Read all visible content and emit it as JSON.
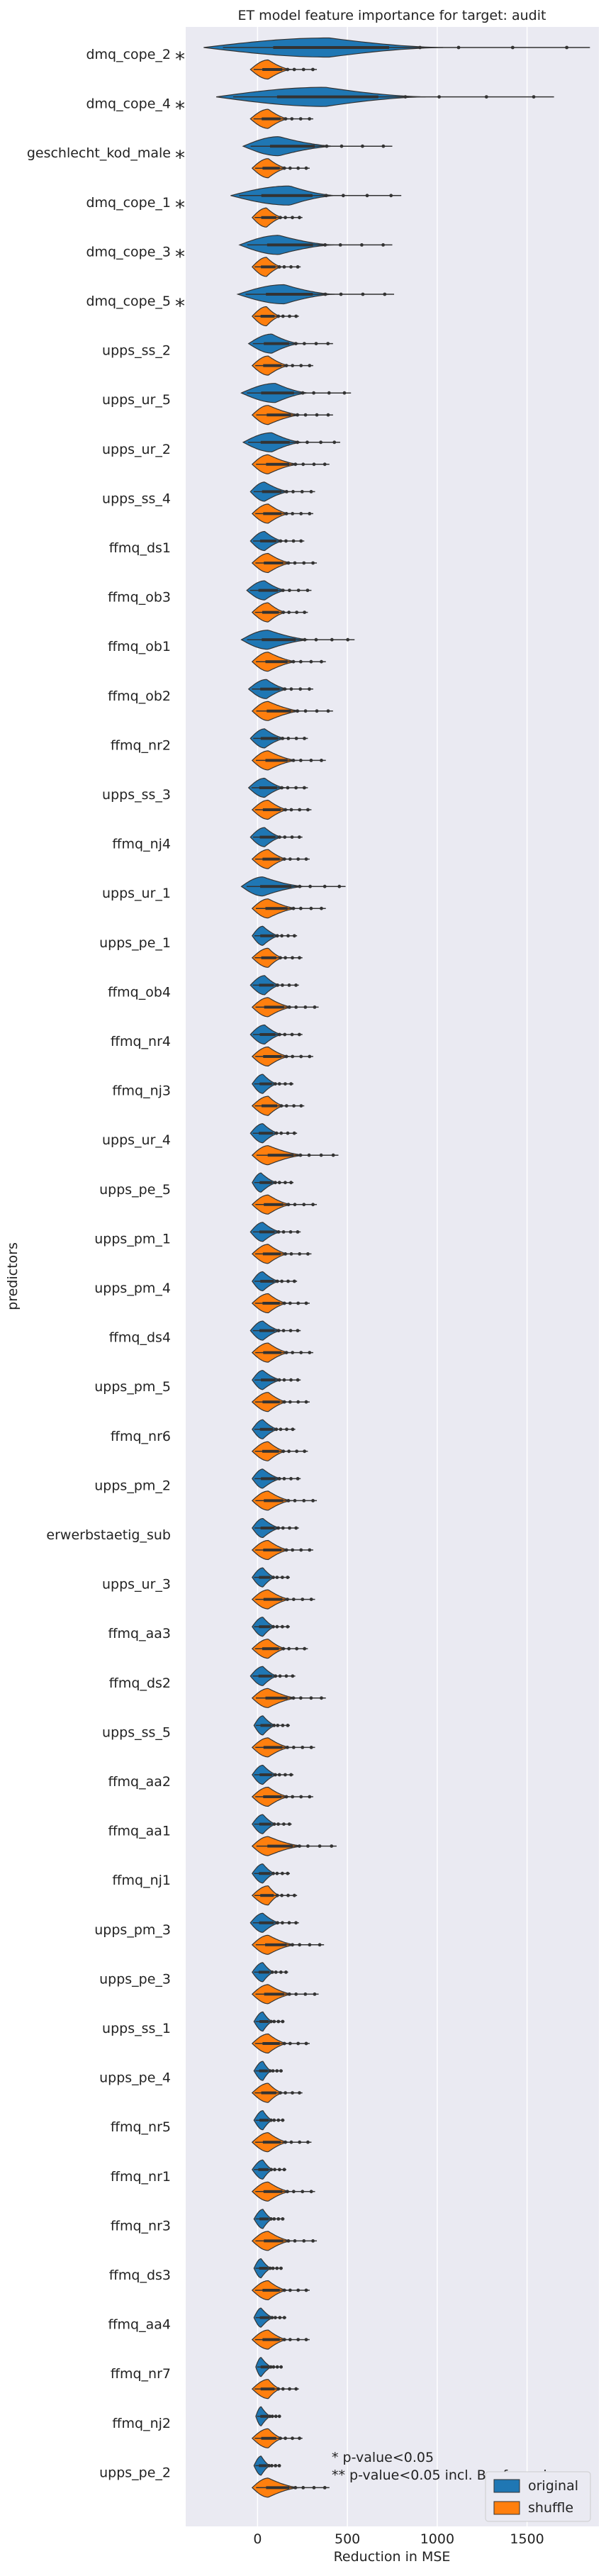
{
  "chart_data": {
    "type": "violin",
    "title": "ET model feature importance for target: audit",
    "xlabel": "Reduction in MSE",
    "ylabel": "predictors",
    "xlim": [
      -400,
      1900
    ],
    "xticks": [
      0,
      500,
      1000,
      1500
    ],
    "xtick_labels": [
      "0",
      "500",
      "1000",
      "1500"
    ],
    "grid": true,
    "legend": {
      "position": "lower-right",
      "entries": [
        "original",
        "shuffle"
      ]
    },
    "colors": {
      "original": "#1f77b4",
      "shuffle": "#ff7f0e",
      "background": "#eaeaf2",
      "grid": "#ffffff"
    },
    "note_lines": [
      "*  p-value<0.05",
      "** p-value<0.05 incl. Bonferroni"
    ],
    "categories": [
      "dmq_cope_2",
      "dmq_cope_4",
      "geschlecht_kod_male",
      "dmq_cope_1",
      "dmq_cope_3",
      "dmq_cope_5",
      "upps_ss_2",
      "upps_ur_5",
      "upps_ur_2",
      "upps_ss_4",
      "ffmq_ds1",
      "ffmq_ob3",
      "ffmq_ob1",
      "ffmq_ob2",
      "ffmq_nr2",
      "upps_ss_3",
      "ffmq_nj4",
      "upps_ur_1",
      "upps_pe_1",
      "ffmq_ob4",
      "ffmq_nr4",
      "ffmq_nj3",
      "upps_ur_4",
      "upps_pe_5",
      "upps_pm_1",
      "upps_pm_4",
      "ffmq_ds4",
      "upps_pm_5",
      "ffmq_nr6",
      "upps_pm_2",
      "erwerbstaetig_sub",
      "upps_ur_3",
      "ffmq_aa3",
      "ffmq_ds2",
      "upps_ss_5",
      "ffmq_aa2",
      "ffmq_aa1",
      "ffmq_nj1",
      "upps_pm_3",
      "upps_pe_3",
      "upps_ss_1",
      "upps_pe_4",
      "ffmq_nr5",
      "ffmq_nr1",
      "ffmq_nr3",
      "ffmq_ds3",
      "ffmq_aa4",
      "ffmq_nr7",
      "ffmq_nj2",
      "upps_pe_2"
    ],
    "significance": [
      "*",
      "*",
      "*",
      "*",
      "*",
      "*",
      "",
      "",
      "",
      "",
      "",
      "",
      "",
      "",
      "",
      "",
      "",
      "",
      "",
      "",
      "",
      "",
      "",
      "",
      "",
      "",
      "",
      "",
      "",
      "",
      "",
      "",
      "",
      "",
      "",
      "",
      "",
      "",
      "",
      "",
      "",
      "",
      "",
      "",
      "",
      "",
      "",
      "",
      "",
      ""
    ],
    "series": [
      {
        "name": "original",
        "ranges": [
          [
            -300,
            1850
          ],
          [
            -230,
            1650
          ],
          [
            -80,
            750
          ],
          [
            -150,
            800
          ],
          [
            -100,
            750
          ],
          [
            -110,
            760
          ],
          [
            -50,
            420
          ],
          [
            -90,
            520
          ],
          [
            -80,
            460
          ],
          [
            -40,
            320
          ],
          [
            -40,
            260
          ],
          [
            -60,
            300
          ],
          [
            -90,
            540
          ],
          [
            -50,
            310
          ],
          [
            -40,
            280
          ],
          [
            -50,
            280
          ],
          [
            -40,
            250
          ],
          [
            -90,
            490
          ],
          [
            -30,
            220
          ],
          [
            -40,
            230
          ],
          [
            -40,
            250
          ],
          [
            -30,
            200
          ],
          [
            -40,
            220
          ],
          [
            -30,
            200
          ],
          [
            -40,
            240
          ],
          [
            -30,
            220
          ],
          [
            -40,
            240
          ],
          [
            -30,
            240
          ],
          [
            -30,
            210
          ],
          [
            -30,
            240
          ],
          [
            -30,
            230
          ],
          [
            -30,
            180
          ],
          [
            -30,
            180
          ],
          [
            -40,
            210
          ],
          [
            -20,
            180
          ],
          [
            -30,
            200
          ],
          [
            -30,
            190
          ],
          [
            -30,
            180
          ],
          [
            -40,
            230
          ],
          [
            -30,
            170
          ],
          [
            -20,
            150
          ],
          [
            -20,
            140
          ],
          [
            -20,
            150
          ],
          [
            -30,
            160
          ],
          [
            -20,
            150
          ],
          [
            -20,
            140
          ],
          [
            -20,
            160
          ],
          [
            -10,
            140
          ],
          [
            -10,
            130
          ],
          [
            -20,
            130
          ]
        ],
        "peaks": [
          400,
          380,
          120,
          180,
          120,
          150,
          80,
          100,
          80,
          40,
          40,
          40,
          60,
          50,
          40,
          40,
          40,
          30,
          30,
          40,
          40,
          30,
          30,
          20,
          30,
          30,
          30,
          30,
          30,
          30,
          30,
          30,
          30,
          30,
          30,
          30,
          30,
          30,
          30,
          30,
          30,
          30,
          30,
          30,
          30,
          20,
          20,
          20,
          20,
          20
        ]
      },
      {
        "name": "shuffle",
        "ranges": [
          [
            -40,
            330
          ],
          [
            -40,
            310
          ],
          [
            -30,
            290
          ],
          [
            -30,
            250
          ],
          [
            -30,
            240
          ],
          [
            -30,
            230
          ],
          [
            -30,
            310
          ],
          [
            -30,
            420
          ],
          [
            -30,
            400
          ],
          [
            -30,
            310
          ],
          [
            -30,
            330
          ],
          [
            -30,
            280
          ],
          [
            -30,
            380
          ],
          [
            -30,
            420
          ],
          [
            -30,
            380
          ],
          [
            -30,
            300
          ],
          [
            -30,
            290
          ],
          [
            -30,
            380
          ],
          [
            -30,
            250
          ],
          [
            -30,
            340
          ],
          [
            -30,
            310
          ],
          [
            -30,
            260
          ],
          [
            -30,
            450
          ],
          [
            -30,
            330
          ],
          [
            -30,
            300
          ],
          [
            -30,
            290
          ],
          [
            -30,
            310
          ],
          [
            -30,
            290
          ],
          [
            -30,
            280
          ],
          [
            -30,
            330
          ],
          [
            -30,
            310
          ],
          [
            -30,
            320
          ],
          [
            -30,
            280
          ],
          [
            -30,
            380
          ],
          [
            -30,
            320
          ],
          [
            -30,
            310
          ],
          [
            -30,
            440
          ],
          [
            -30,
            220
          ],
          [
            -30,
            370
          ],
          [
            -30,
            340
          ],
          [
            -30,
            290
          ],
          [
            -30,
            250
          ],
          [
            -30,
            300
          ],
          [
            -30,
            320
          ],
          [
            -30,
            330
          ],
          [
            -30,
            290
          ],
          [
            -30,
            290
          ],
          [
            -30,
            230
          ],
          [
            -30,
            250
          ],
          [
            -30,
            400
          ]
        ],
        "peaks": [
          60,
          60,
          60,
          50,
          50,
          50,
          60,
          60,
          60,
          60,
          60,
          60,
          60,
          60,
          60,
          60,
          60,
          60,
          60,
          60,
          60,
          60,
          60,
          60,
          60,
          60,
          60,
          60,
          60,
          60,
          60,
          60,
          60,
          60,
          60,
          60,
          60,
          60,
          60,
          60,
          60,
          60,
          60,
          60,
          60,
          60,
          60,
          60,
          60,
          60
        ]
      }
    ]
  }
}
